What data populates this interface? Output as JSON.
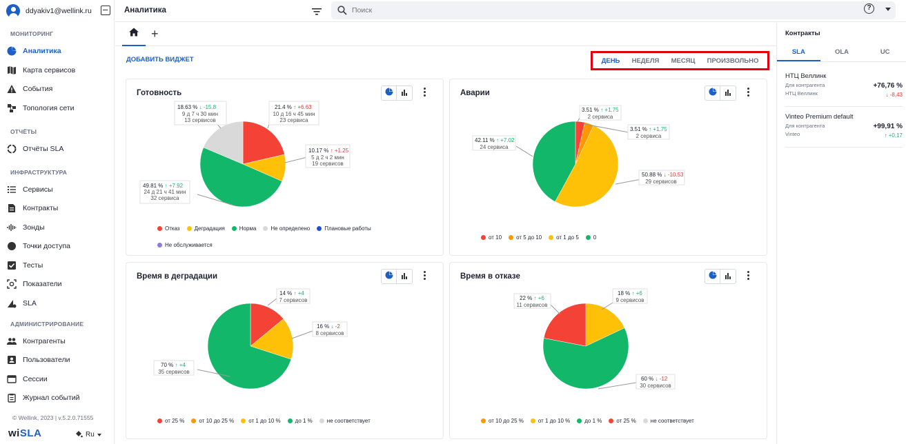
{
  "user": {
    "email": "ddyakiv1@wellink.ru"
  },
  "sidebar": {
    "sections": [
      {
        "title": "МОНИТОРИНГ"
      },
      {
        "title": "ОТЧЁТЫ"
      },
      {
        "title": "ИНФРАСТРУКТУРА"
      },
      {
        "title": "АДМИНИСТРИРОВАНИЕ"
      }
    ],
    "items": [
      {
        "label": "Аналитика",
        "icon": "analytics-icon"
      },
      {
        "label": "Карта сервисов",
        "icon": "map-icon"
      },
      {
        "label": "События",
        "icon": "warning-icon"
      },
      {
        "label": "Топология сети",
        "icon": "topology-icon"
      },
      {
        "label": "Отчёты SLA",
        "icon": "report-icon"
      },
      {
        "label": "Сервисы",
        "icon": "list-icon"
      },
      {
        "label": "Контракты",
        "icon": "document-icon"
      },
      {
        "label": "Зонды",
        "icon": "probe-icon"
      },
      {
        "label": "Точки доступа",
        "icon": "circle-icon"
      },
      {
        "label": "Тесты",
        "icon": "checkbox-icon"
      },
      {
        "label": "Показатели",
        "icon": "metrics-icon"
      },
      {
        "label": "SLA",
        "icon": "sla-icon"
      },
      {
        "label": "Контрагенты",
        "icon": "people-icon"
      },
      {
        "label": "Пользователи",
        "icon": "user-card-icon"
      },
      {
        "label": "Сессии",
        "icon": "session-icon"
      },
      {
        "label": "Журнал событий",
        "icon": "log-icon"
      }
    ],
    "footer": "© Wellink, 2023 | v.5.2.0.71555",
    "logo": {
      "prefix": "wi",
      "suffix": "SLA"
    },
    "language": "Ru"
  },
  "topbar": {
    "title": "Аналитика",
    "search_placeholder": "Поиск"
  },
  "toolbar": {
    "add_widget": "ДОБАВИТЬ ВИДЖЕТ"
  },
  "period": {
    "options": [
      "ДЕНЬ",
      "НЕДЕЛЯ",
      "МЕСЯЦ",
      "ПРОИЗВОЛЬНО"
    ],
    "selected": "ДЕНЬ"
  },
  "widgets": [
    {
      "title": "Готовность",
      "labels": [
        {
          "pct": "18.63 %",
          "delta": "↓ -15.8",
          "line2": "9 д 7 ч 30 мин",
          "line3": "13 сервисов"
        },
        {
          "pct": "21.4 %",
          "delta": "↑ +6.63",
          "line2": "10 д 16 ч 45 мин",
          "line3": "23 сервиса"
        },
        {
          "pct": "10.17 %",
          "delta": "↑ +1.25",
          "line2": "5 д 2 ч 2 мин",
          "line3": "19 сервисов"
        },
        {
          "pct": "49.81 %",
          "delta": "↑ +7.92",
          "line2": "24 д 21 ч 41 мин",
          "line3": "32 сервиса"
        }
      ],
      "legend": [
        {
          "label": "Отказ",
          "color": "#f44336"
        },
        {
          "label": "Деградация",
          "color": "#ffc107"
        },
        {
          "label": "Норма",
          "color": "#12b76a"
        },
        {
          "label": "Не определено",
          "color": "#d9d9d9"
        },
        {
          "label": "Плановые работы",
          "color": "#1d4ed8"
        },
        {
          "label": "Не обслуживается",
          "color": "#8b7fd6"
        }
      ]
    },
    {
      "title": "Аварии",
      "labels": [
        {
          "pct": "3.51 %",
          "delta": "↑ +1.75",
          "line2": "2 сервиса"
        },
        {
          "pct": "3.51 %",
          "delta": "↑ +1.75",
          "line2": "2 сервиса"
        },
        {
          "pct": "50.88 %",
          "delta": "↓ -10.53",
          "line2": "29 сервисов"
        },
        {
          "pct": "42.11 %",
          "delta": "↑ +7.02",
          "line2": "24 сервиса"
        }
      ],
      "legend": [
        {
          "label": "от 10",
          "color": "#f44336"
        },
        {
          "label": "от 5 до 10",
          "color": "#ff9800"
        },
        {
          "label": "от 1 до 5",
          "color": "#ffc107"
        },
        {
          "label": "0",
          "color": "#12b76a"
        }
      ]
    },
    {
      "title": "Время в деградации",
      "labels": [
        {
          "pct": "14 %",
          "delta": "↑ +4",
          "line2": "7 сервисов"
        },
        {
          "pct": "16 %",
          "delta": "↓ -2",
          "line2": "8 сервисов"
        },
        {
          "pct": "70 %",
          "delta": "↑ +4",
          "line2": "35 сервисов"
        }
      ],
      "legend": [
        {
          "label": "от 25 %",
          "color": "#f44336"
        },
        {
          "label": "от 10 до 25 %",
          "color": "#ff9800"
        },
        {
          "label": "от 1 до 10 %",
          "color": "#ffc107"
        },
        {
          "label": "до 1 %",
          "color": "#12b76a"
        },
        {
          "label": "не соответствует",
          "color": "#d9d9d9"
        }
      ]
    },
    {
      "title": "Время в отказе",
      "labels": [
        {
          "pct": "22 %",
          "delta": "↑ +6",
          "line2": "11 сервисов"
        },
        {
          "pct": "18 %",
          "delta": "↑ +6",
          "line2": "9 сервисов"
        },
        {
          "pct": "60 %",
          "delta": "↓ -12",
          "line2": "30 сервисов"
        }
      ],
      "legend": [
        {
          "label": "от 10 до 25 %",
          "color": "#ff9800"
        },
        {
          "label": "от 1 до 10 %",
          "color": "#ffc107"
        },
        {
          "label": "до 1 %",
          "color": "#12b76a"
        },
        {
          "label": "от 25 %",
          "color": "#f44336"
        },
        {
          "label": "не соответствует",
          "color": "#d9d9d9"
        }
      ]
    }
  ],
  "chart_data": [
    {
      "type": "pie",
      "title": "Готовность",
      "slices": [
        {
          "name": "Отказ",
          "value": 21.4,
          "color": "#f44336"
        },
        {
          "name": "Деградация",
          "value": 10.17,
          "color": "#ffc107"
        },
        {
          "name": "Норма",
          "value": 49.81,
          "color": "#12b76a"
        },
        {
          "name": "Не определено",
          "value": 18.63,
          "color": "#d9d9d9"
        }
      ]
    },
    {
      "type": "pie",
      "title": "Аварии",
      "slices": [
        {
          "name": "от 10",
          "value": 3.51,
          "color": "#f44336"
        },
        {
          "name": "от 5 до 10",
          "value": 3.51,
          "color": "#ff9800"
        },
        {
          "name": "от 1 до 5",
          "value": 50.88,
          "color": "#ffc107"
        },
        {
          "name": "0",
          "value": 42.11,
          "color": "#12b76a"
        }
      ]
    },
    {
      "type": "pie",
      "title": "Время в деградации",
      "slices": [
        {
          "name": "от 25 %",
          "value": 14,
          "color": "#f44336"
        },
        {
          "name": "от 1 до 10 %",
          "value": 16,
          "color": "#ffc107"
        },
        {
          "name": "до 1 %",
          "value": 70,
          "color": "#12b76a"
        }
      ]
    },
    {
      "type": "pie",
      "title": "Время в отказе",
      "slices": [
        {
          "name": "от 1 до 10 %",
          "value": 18,
          "color": "#ffc107"
        },
        {
          "name": "до 1 %",
          "value": 60,
          "color": "#12b76a"
        },
        {
          "name": "от 25 %",
          "value": 22,
          "color": "#f44336"
        }
      ]
    }
  ],
  "right_panel": {
    "title": "Контракты",
    "tabs": [
      "SLA",
      "OLA",
      "UC"
    ],
    "contracts": [
      {
        "name": "НТЦ Веллинк",
        "sub1": "Для контрагента",
        "sub2": "НТЦ Веллинк",
        "value": "+76,76 %",
        "delta": "↓ -8,43"
      },
      {
        "name": "Vinteo Premium default",
        "sub1": "Для контрагента",
        "sub2": "Vinteo",
        "value": "+99,91 %",
        "delta": "↑ +0,17"
      }
    ]
  }
}
